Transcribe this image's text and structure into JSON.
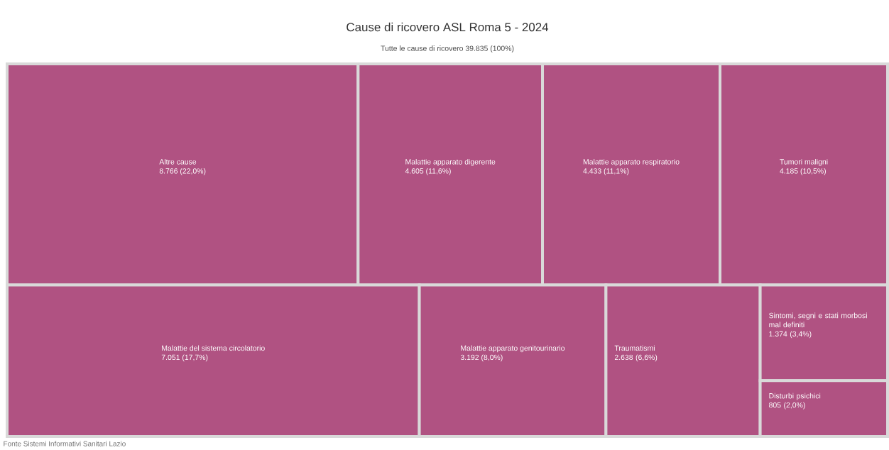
{
  "chart_data": {
    "type": "other",
    "title": "Cause di ricovero ASL Roma 5 - 2024",
    "subtitle": "Tutte le cause di ricovero 39.835 (100%)",
    "categories": [
      "Altre cause",
      "Malattie apparato digerente",
      "Malattie apparato respiratorio",
      "Tumori maligni",
      "Malattie del sistema circolatorio",
      "Malattie apparato genitourinario",
      "Traumatismi",
      "Sintomi, segni e stati morbosi mal definiti",
      "Disturbi psichici"
    ],
    "values": [
      8766,
      4605,
      4433,
      4185,
      7051,
      3192,
      2638,
      1374,
      805
    ],
    "value_labels": [
      "8.766 (22,0%)",
      "4.605 (11,6%)",
      "4.433 (11,1%)",
      "4.185 (10,5%)",
      "7.051 (17,7%)",
      "3.192 (8,0%)",
      "2.638 (6,6%)",
      "1.374 (3,4%)",
      "805 (2,0%)"
    ],
    "color": "#b05282",
    "annotations": [
      "Fonte Sistemi Informativi Sanitari Lazio"
    ]
  }
}
